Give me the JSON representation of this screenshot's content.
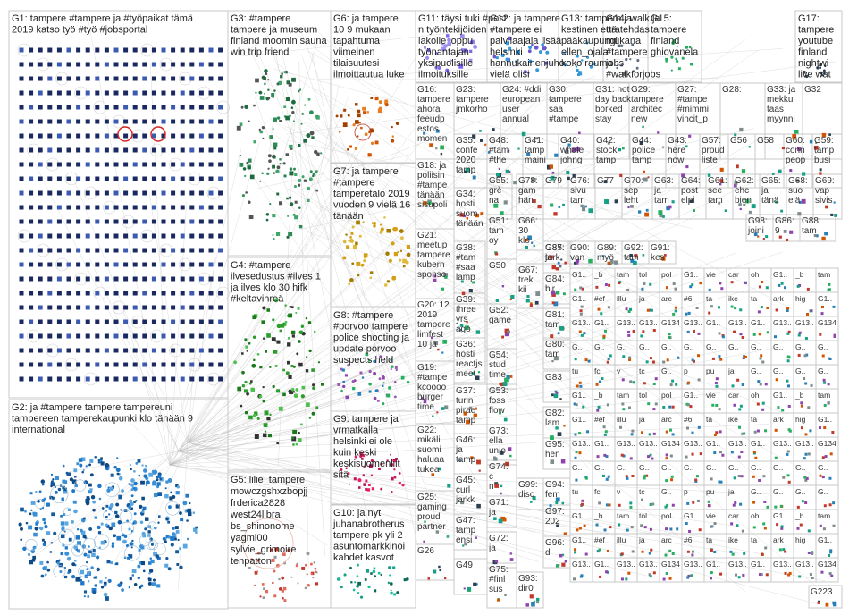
{
  "groups": [
    {
      "id": "G1",
      "lines": [
        "G1: tampere #tampere ja #työpaikat tämä",
        "2019 katso työ #työ #jobsportal"
      ],
      "color": "#223a78"
    },
    {
      "id": "G2",
      "lines": [
        "G2: ja #tampere tampere tampereuni",
        "tampereen tamperekaupunki klo tänään 9",
        "international"
      ],
      "color": "#1f77c8"
    },
    {
      "id": "G3",
      "lines": [
        "G3: #tampere",
        "tampere ja museum",
        "finland moomin sauna",
        "win trip friend"
      ],
      "color": "#2e8b57"
    },
    {
      "id": "G4",
      "lines": [
        "G4: #tampere",
        "ilvesedustus #ilves 1",
        "ja ilves klo 30 hifk",
        "#keltavihreä"
      ],
      "color": "#2a9d2a"
    },
    {
      "id": "G5",
      "lines": [
        "G5: lilie_tampere",
        "mowczgshxzbopjj",
        "frderica2828",
        "west24libra",
        "bs_shinonome",
        "yagmi00",
        "sylvie_grimoire",
        "tenpatton"
      ],
      "color": "#c0392b"
    },
    {
      "id": "G6",
      "lines": [
        "G6: ja tampere",
        "10 9 mukaan",
        "tapahtuma",
        "viimeinen",
        "tilaisuutesi",
        "ilmoittautua luke"
      ],
      "color": "#d35400"
    },
    {
      "id": "G7",
      "lines": [
        "G7: ja tampere",
        "#tampere",
        "tamperetalo 2019",
        "vuoden 9 vielä 16",
        "tänään"
      ],
      "color": "#d4a017"
    },
    {
      "id": "G8",
      "lines": [
        "G8: #tampere",
        "#porvoo tampere",
        "police shooting ja",
        "update porvoo",
        "suspects held"
      ],
      "color": "#8e44ad"
    },
    {
      "id": "G9",
      "lines": [
        "G9: tampere ja",
        "vrmatkalla",
        "helsinki ei ole",
        "kuin keski",
        "keskisuomenliit",
        "sitä"
      ],
      "color": "#c2185b"
    },
    {
      "id": "G10",
      "lines": [
        "G10: ja nyt",
        "juhanabrotherus",
        "tampere pk yli 2",
        "asuntomarkkinoi",
        "kahdet kasvot"
      ],
      "color": "#16a085"
    },
    {
      "id": "G11",
      "lines": [
        "G11: täysi tuki #post",
        "n työntekijöiden",
        "lakolle loppu",
        "työnantajan",
        "yksipuolisille",
        "ilmoituksille"
      ],
      "color": "#7b68ee"
    },
    {
      "id": "G12",
      "lines": [
        "G12: ja tampere",
        "#tampere ei",
        "paivilaajala lisää",
        "helsinki",
        "hannukainenjuho",
        "vielä olisi"
      ],
      "color": "#6a5acd"
    },
    {
      "id": "G13",
      "lines": [
        "G13: tampere ja",
        "kestinen että",
        "pääkaupungi",
        "ellen_ojala",
        "koko rauma"
      ],
      "color": "#3498db"
    },
    {
      "id": "G14",
      "lines": [
        "G14: walk ja",
        "uratehdas",
        "mukana",
        "#tampere",
        "jobs",
        "#walkforjobs"
      ],
      "color": "#5d6d7e"
    },
    {
      "id": "G15",
      "lines": [
        "G15:",
        "tampere",
        "finland",
        "ghiovanela"
      ],
      "color": "#27ae60"
    },
    {
      "id": "G17",
      "lines": [
        "G17:",
        "tampere",
        "youtube",
        "finland",
        "nightwi",
        "live wat"
      ],
      "color": "#2c3e50"
    }
  ],
  "small_groups": [
    {
      "id": "G16",
      "lines": [
        "G16:",
        "tampere",
        "ahora",
        "feeudp",
        "estos",
        "momen"
      ]
    },
    {
      "id": "G23",
      "lines": [
        "G23:",
        "tampere",
        "jmkorho"
      ]
    },
    {
      "id": "G24",
      "lines": [
        "G24: #ddi",
        "european",
        "user",
        "annual"
      ]
    },
    {
      "id": "G30",
      "lines": [
        "G30:",
        "tampere",
        "saa",
        "#tampe"
      ]
    },
    {
      "id": "G31",
      "lines": [
        "G31: hot",
        "day back",
        "borked",
        "stay"
      ]
    },
    {
      "id": "G29",
      "lines": [
        "G29:",
        "tampere",
        "architec",
        "new"
      ]
    },
    {
      "id": "G27",
      "lines": [
        "G27:",
        "#tampe",
        "#mimmi",
        "vincit_p"
      ]
    },
    {
      "id": "G28",
      "lines": [
        "G28:"
      ]
    },
    {
      "id": "G33",
      "lines": [
        "G33: ja",
        "mekku",
        "taas",
        "myynni"
      ]
    },
    {
      "id": "G32",
      "lines": [
        "G32"
      ]
    },
    {
      "id": "G18",
      "lines": [
        "G18: ja",
        "poliisin",
        "#tampe",
        "tänään",
        "sisupoli"
      ]
    },
    {
      "id": "G35",
      "lines": [
        "G35:",
        "confe",
        "2020",
        "tamp"
      ]
    },
    {
      "id": "G48",
      "lines": [
        "G48:",
        "#tam",
        "#the"
      ]
    },
    {
      "id": "G41",
      "lines": [
        "G41:",
        "tamp",
        "maini"
      ]
    },
    {
      "id": "G40",
      "lines": [
        "G40:",
        "whale",
        "johng"
      ]
    },
    {
      "id": "G42",
      "lines": [
        "G42:",
        "stock",
        "tamp"
      ]
    },
    {
      "id": "G44",
      "lines": [
        "G44:",
        "police",
        "tamp"
      ]
    },
    {
      "id": "G43",
      "lines": [
        "G43:",
        "here",
        "now"
      ]
    },
    {
      "id": "G57",
      "lines": [
        "G57:",
        "proud",
        "liste"
      ]
    },
    {
      "id": "G56",
      "lines": [
        "G56"
      ]
    },
    {
      "id": "G58",
      "lines": [
        "G58"
      ]
    },
    {
      "id": "G60",
      "lines": [
        "G60:",
        "conn",
        "peop"
      ]
    },
    {
      "id": "G59",
      "lines": [
        "G59:",
        "tamp",
        "busi"
      ]
    },
    {
      "id": "G34",
      "lines": [
        "G34:",
        "hosti",
        "suom",
        "tänään"
      ]
    },
    {
      "id": "G55",
      "lines": [
        "G55:",
        "grè",
        "na"
      ]
    },
    {
      "id": "G78",
      "lines": [
        "G78:",
        "gam",
        "hän"
      ]
    },
    {
      "id": "G79",
      "lines": [
        "G79"
      ]
    },
    {
      "id": "G76",
      "lines": [
        "G76:",
        "sivu",
        "tam"
      ]
    },
    {
      "id": "G77",
      "lines": [
        "G77"
      ]
    },
    {
      "id": "G70",
      "lines": [
        "G70:",
        "sep",
        "leht"
      ]
    },
    {
      "id": "G63",
      "lines": [
        "G63:",
        "ja",
        "tam"
      ]
    },
    {
      "id": "G64",
      "lines": [
        "G64:",
        "post",
        "elpi"
      ]
    },
    {
      "id": "G61",
      "lines": [
        "G61:",
        "see",
        "tam"
      ]
    },
    {
      "id": "G62",
      "lines": [
        "G62:",
        "ehc",
        "bien"
      ]
    },
    {
      "id": "G65",
      "lines": [
        "G65:",
        "ja",
        "tänä"
      ]
    },
    {
      "id": "G68",
      "lines": [
        "G68:",
        "suo",
        "elä"
      ]
    },
    {
      "id": "G69",
      "lines": [
        "G69:",
        "vap",
        "sivis"
      ]
    },
    {
      "id": "G21",
      "lines": [
        "G21:",
        "meetup",
        "tampere",
        "kubern",
        "sponso"
      ]
    },
    {
      "id": "G38",
      "lines": [
        "G38:",
        "#tam",
        "#saa",
        "lämp"
      ]
    },
    {
      "id": "G66",
      "lines": [
        "G66:",
        "30",
        "klo"
      ]
    },
    {
      "id": "G51",
      "lines": [
        "G51:",
        "tam",
        "oy"
      ]
    },
    {
      "id": "G20",
      "lines": [
        "G20: 12",
        "2019",
        "tampere",
        "limfest",
        "10 ja"
      ]
    },
    {
      "id": "G39",
      "lines": [
        "G39:",
        "three",
        "yrs",
        "ago"
      ]
    },
    {
      "id": "G67",
      "lines": [
        "G67:",
        "trek",
        "kii"
      ]
    },
    {
      "id": "G19",
      "lines": [
        "G19:",
        "#tampe",
        "kcoooo",
        "burger",
        "time"
      ]
    },
    {
      "id": "G36",
      "lines": [
        "G36:",
        "hosti",
        "reactjs",
        "meet"
      ]
    },
    {
      "id": "G50",
      "lines": [
        "G50"
      ]
    },
    {
      "id": "G52",
      "lines": [
        "G52:",
        "game"
      ]
    },
    {
      "id": "G54",
      "lines": [
        "G54:",
        "stud",
        "time"
      ]
    },
    {
      "id": "G53",
      "lines": [
        "G53:",
        "foss",
        "flow"
      ]
    },
    {
      "id": "G37",
      "lines": [
        "G37:",
        "turin",
        "pirae",
        "tamp"
      ]
    },
    {
      "id": "G22",
      "lines": [
        "G22:",
        "mikäli",
        "suomi",
        "haluaa",
        "tukea"
      ]
    },
    {
      "id": "G46",
      "lines": [
        "G46:",
        "ja",
        "tamp"
      ]
    },
    {
      "id": "G73",
      "lines": [
        "G73:",
        "ella",
        "unio"
      ]
    },
    {
      "id": "G74",
      "lines": [
        "G74:",
        "c",
        "n"
      ]
    },
    {
      "id": "G45",
      "lines": [
        "G45:",
        "curl",
        "jarkk"
      ]
    },
    {
      "id": "G71",
      "lines": [
        "G71:",
        "ja"
      ]
    },
    {
      "id": "G25",
      "lines": [
        "G25:",
        "gaming",
        "proud",
        "partner"
      ]
    },
    {
      "id": "G47",
      "lines": [
        "G47:",
        "tamp",
        "ensi"
      ]
    },
    {
      "id": "G72",
      "lines": [
        "G72:",
        "ja"
      ]
    },
    {
      "id": "G26",
      "lines": [
        "G26"
      ]
    },
    {
      "id": "G49",
      "lines": [
        "G49"
      ]
    },
    {
      "id": "G75",
      "lines": [
        "G75:",
        "#finl",
        "sus"
      ]
    },
    {
      "id": "G80",
      "lines": [
        "G80:",
        "tam"
      ]
    },
    {
      "id": "G81",
      "lines": [
        "G81:",
        "tam"
      ]
    },
    {
      "id": "G82",
      "lines": [
        "G82:",
        "lam"
      ]
    },
    {
      "id": "G83",
      "lines": [
        "G83"
      ]
    },
    {
      "id": "G84",
      "lines": [
        "G84:",
        "bir"
      ]
    },
    {
      "id": "G85",
      "lines": [
        "G85:",
        "ja"
      ]
    },
    {
      "id": "G87",
      "lines": [
        "G87:",
        "tark"
      ]
    },
    {
      "id": "G90",
      "lines": [
        "G90:",
        "van"
      ]
    },
    {
      "id": "G89",
      "lines": [
        "G89:",
        "myö"
      ]
    },
    {
      "id": "G92",
      "lines": [
        "G92:",
        "tam"
      ]
    },
    {
      "id": "G91",
      "lines": [
        "G91:",
        "kes"
      ]
    },
    {
      "id": "G93",
      "lines": [
        "G93:",
        "dir0"
      ]
    },
    {
      "id": "G94",
      "lines": [
        "G94:",
        "fem"
      ]
    },
    {
      "id": "G95",
      "lines": [
        "G95:",
        "hen"
      ]
    },
    {
      "id": "G96",
      "lines": [
        "G96:",
        "d"
      ]
    },
    {
      "id": "G97",
      "lines": [
        "G97:",
        "202"
      ]
    },
    {
      "id": "G98",
      "lines": [
        "G98:",
        "joini"
      ]
    },
    {
      "id": "G86",
      "lines": [
        "G86:",
        "9"
      ]
    },
    {
      "id": "G88",
      "lines": [
        "G88:",
        "tam"
      ]
    },
    {
      "id": "G99",
      "lines": [
        "G99:",
        "disc"
      ]
    },
    {
      "id": "G223",
      "lines": [
        "G223"
      ]
    }
  ],
  "grid_cell_labels": [
    [
      "G1..",
      "_b",
      "tam",
      "tol",
      "pol",
      "G1..",
      "vie",
      "car",
      "oh"
    ],
    [
      "G1..",
      "#ef",
      "illu",
      "ja",
      "arc",
      "#6",
      "ta",
      "ike",
      "ta",
      "ark",
      "hig"
    ],
    [
      "G13..",
      "G1..",
      "G13..",
      "G13..",
      "G134",
      "G13..",
      "G1.."
    ],
    [
      "G..",
      "G..",
      "G..",
      "G..",
      "G..",
      "G..",
      "G..",
      "G..",
      "G..",
      "G..",
      "G..",
      "G.."
    ],
    [
      "tu",
      "fc",
      "v",
      "tc",
      "G..",
      "p",
      "pu",
      "ja",
      "G..",
      "G..",
      "G..",
      "G.."
    ]
  ]
}
